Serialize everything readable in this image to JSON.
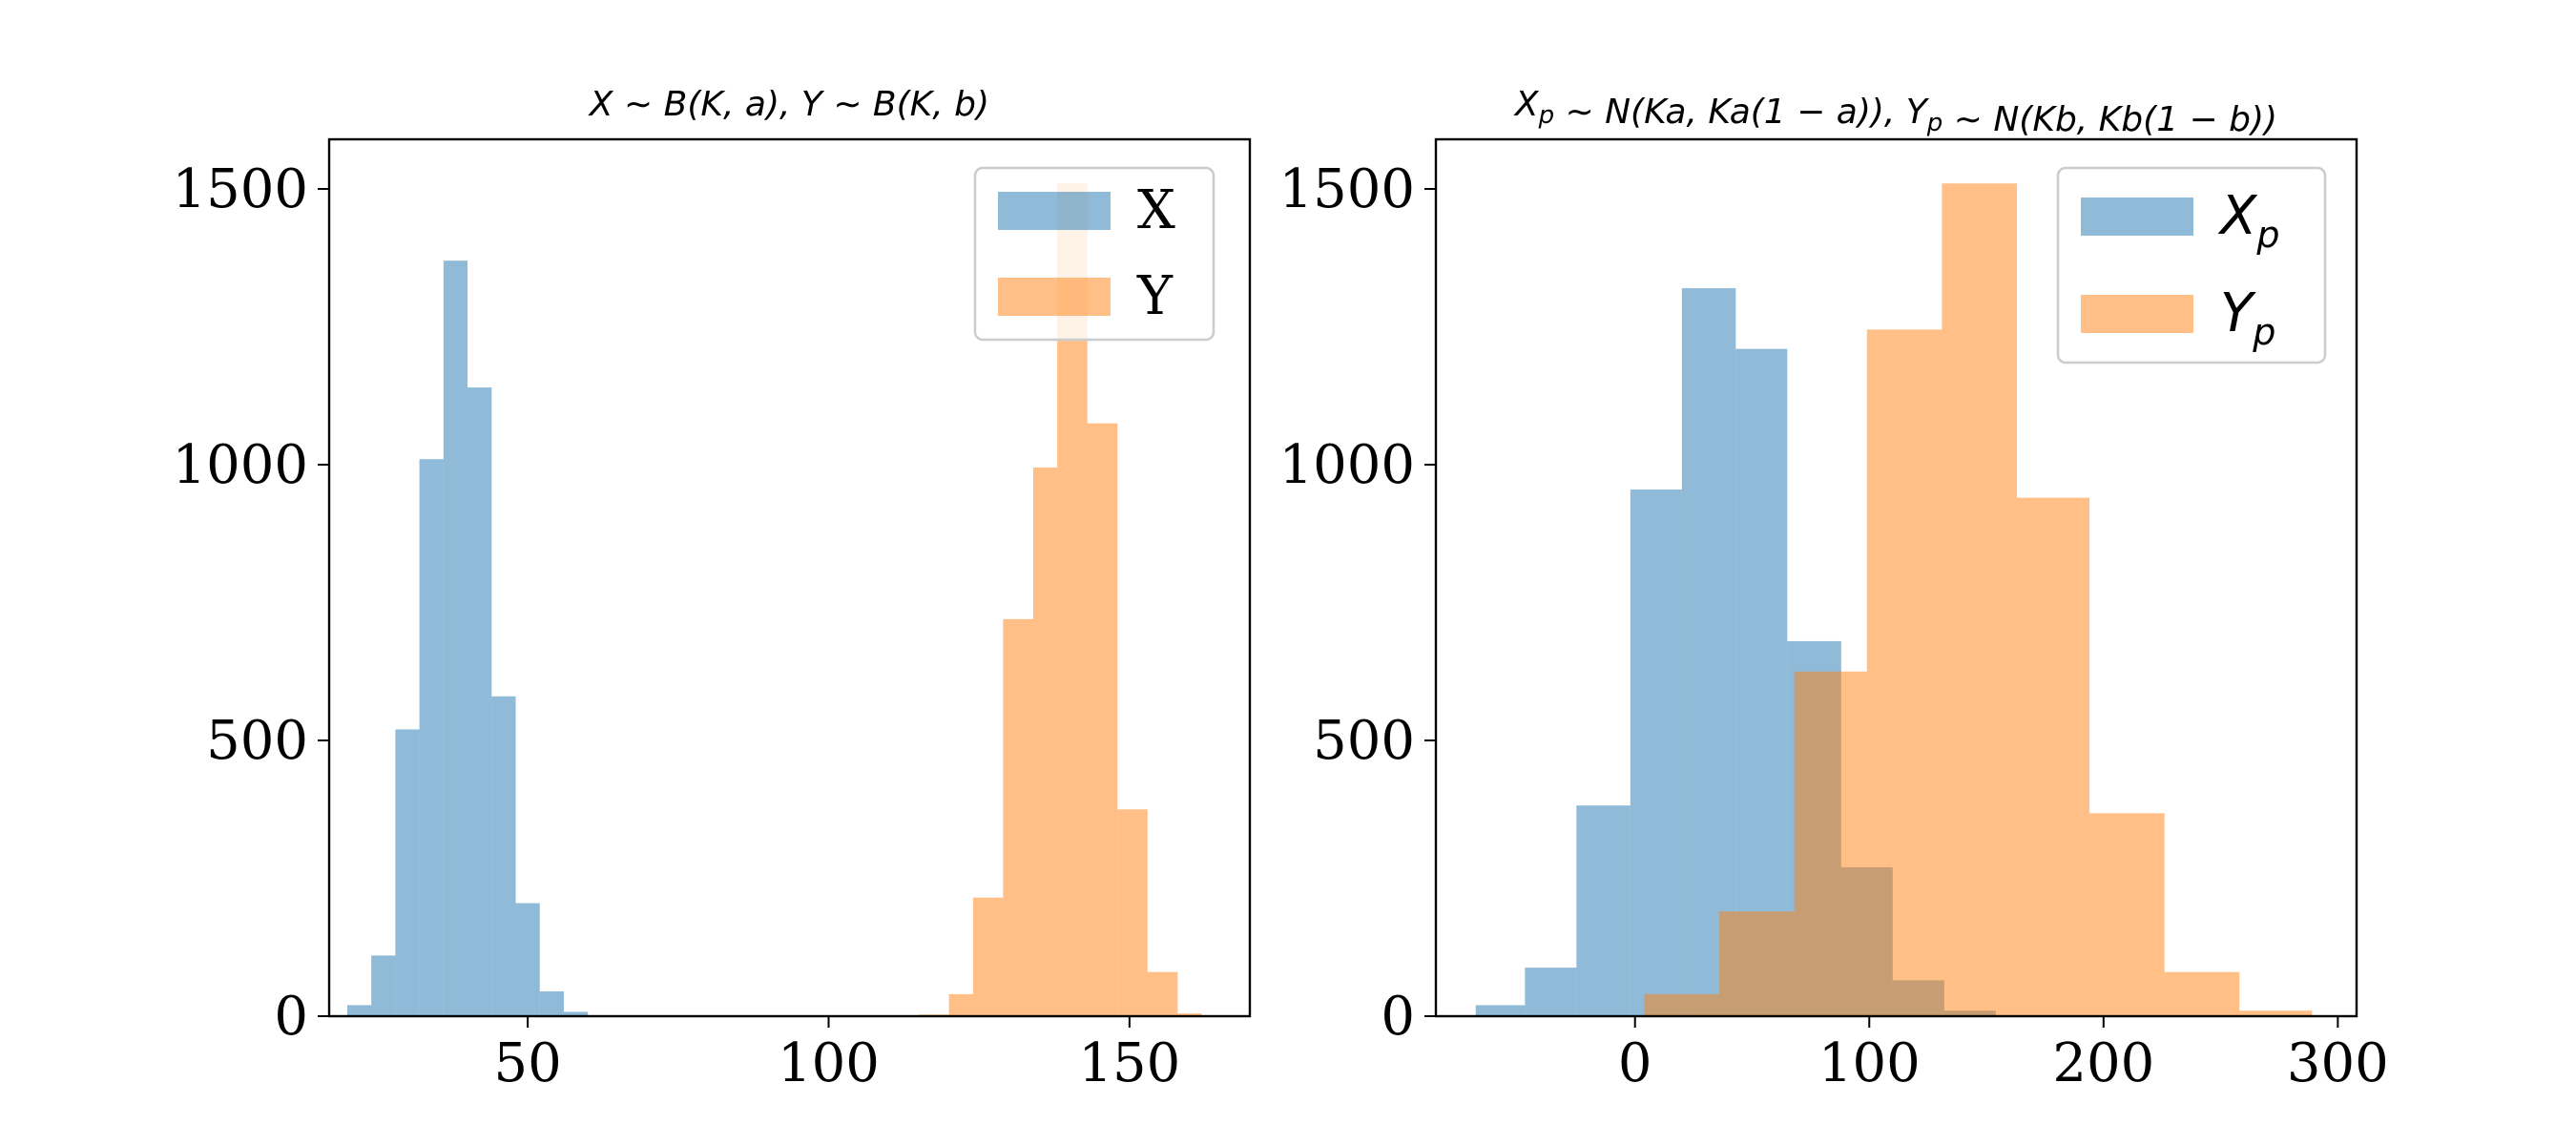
{
  "chart_data": [
    {
      "type": "bar",
      "subtype": "histogram",
      "title": "X ∼ B(K, a), Y ∼ B(K, b)",
      "xlabel": "",
      "ylabel": "",
      "xlim": [
        17,
        170
      ],
      "ylim": [
        0,
        1590
      ],
      "xticks": [
        50,
        100,
        150
      ],
      "yticks": [
        0,
        500,
        1000,
        1500
      ],
      "legend": {
        "placement": "top-right",
        "labels": [
          "X",
          "Y"
        ]
      },
      "series": [
        {
          "name": "X",
          "color": "#1f77b4",
          "alpha": 0.5,
          "bins": [
            [
              20,
              24,
              20
            ],
            [
              24,
              28,
              110
            ],
            [
              28,
              32,
              520
            ],
            [
              32,
              36,
              1010
            ],
            [
              36,
              40,
              1370
            ],
            [
              40,
              44,
              1140
            ],
            [
              44,
              48,
              580
            ],
            [
              48,
              52,
              205
            ],
            [
              52,
              56,
              45
            ],
            [
              56,
              60,
              8
            ]
          ]
        },
        {
          "name": "Y",
          "color": "#ff7f0e",
          "alpha": 0.5,
          "bins": [
            [
              115,
              120,
              3
            ],
            [
              120,
              124,
              40
            ],
            [
              124,
              129,
              215
            ],
            [
              129,
              134,
              720
            ],
            [
              134,
              138,
              995
            ],
            [
              138,
              143,
              1510
            ],
            [
              143,
              148,
              1075
            ],
            [
              148,
              153,
              375
            ],
            [
              153,
              158,
              80
            ],
            [
              158,
              162,
              5
            ]
          ]
        }
      ]
    },
    {
      "type": "bar",
      "subtype": "histogram",
      "title": "Xp ∼ N(Ka, Ka(1 − a)), Yp ∼ N(Kb, Kb(1 − b))",
      "xlabel": "",
      "ylabel": "",
      "xlim": [
        -85,
        308
      ],
      "ylim": [
        0,
        1590
      ],
      "xticks": [
        0,
        100,
        200,
        300
      ],
      "yticks": [
        0,
        500,
        1000,
        1500
      ],
      "legend": {
        "placement": "top-right",
        "labels": [
          "Xp",
          "Yp"
        ]
      },
      "series": [
        {
          "name": "Xp",
          "color": "#1f77b4",
          "alpha": 0.5,
          "bins": [
            [
              -68,
              -47,
              20
            ],
            [
              -47,
              -25,
              88
            ],
            [
              -25,
              -2,
              382
            ],
            [
              -2,
              20,
              955
            ],
            [
              20,
              43,
              1320
            ],
            [
              43,
              65,
              1210
            ],
            [
              65,
              88,
              680
            ],
            [
              88,
              110,
              270
            ],
            [
              110,
              132,
              65
            ],
            [
              132,
              154,
              10
            ]
          ]
        },
        {
          "name": "Yp",
          "color": "#ff7f0e",
          "alpha": 0.5,
          "bins": [
            [
              4,
              36,
              40
            ],
            [
              36,
              68,
              190
            ],
            [
              68,
              99,
              625
            ],
            [
              99,
              131,
              1245
            ],
            [
              131,
              163,
              1510
            ],
            [
              163,
              194,
              940
            ],
            [
              194,
              226,
              368
            ],
            [
              226,
              258,
              80
            ],
            [
              258,
              289,
              10
            ]
          ]
        }
      ]
    }
  ]
}
